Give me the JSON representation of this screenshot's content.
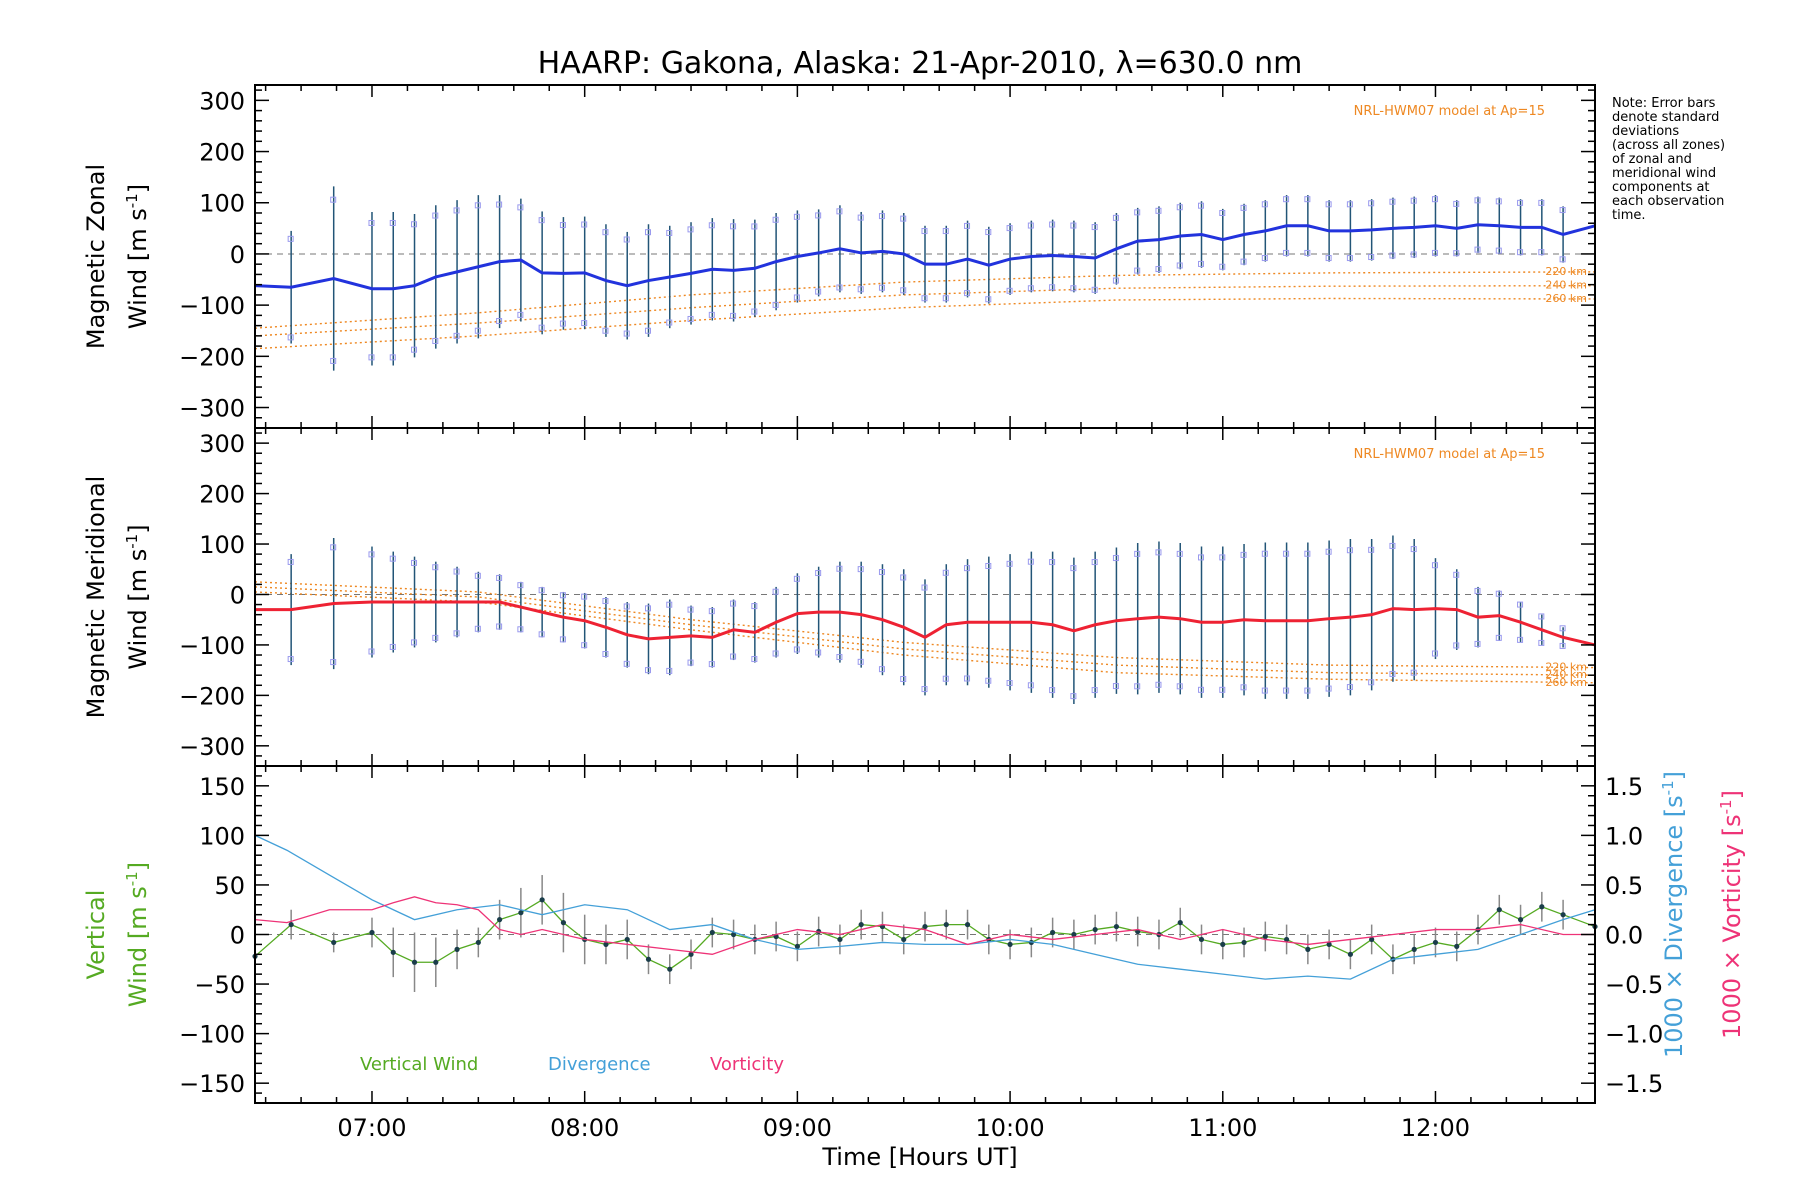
{
  "title": "HAARP: Gakona,  Alaska: 21-Apr-2010, λ=630.0 nm",
  "note_lines": [
    "Note: Error bars",
    "denote standard",
    "deviations",
    "(across all zones)",
    "of zonal and",
    "meridional wind",
    "components at",
    "each observation",
    "time."
  ],
  "colors": {
    "zonal": "#2233dd",
    "meridional": "#ee2233",
    "vertical": "#55aa22",
    "divergence": "#44a0d8",
    "vorticity": "#ee3377",
    "model": "#ee8822",
    "errorbar": "#225577",
    "scatter": "#9999ee"
  },
  "chart_data": [
    {
      "type": "line",
      "id": "zonal",
      "ylabel_line1": "Magnetic Zonal",
      "ylabel_line2": "Wind [m s",
      "ylabel_sup": "-1",
      "ylabel_close": "]",
      "xlim": [
        6.45,
        12.75
      ],
      "ylim": [
        -340,
        330
      ],
      "yticks": [
        300,
        200,
        100,
        0,
        -100,
        -200,
        -300
      ],
      "grid": false,
      "model_label": "NRL-HWM07 model at Ap=15",
      "model_curves": [
        {
          "name": "220 km",
          "x": [
            6.45,
            7.5,
            8.5,
            9.5,
            10.5,
            11.5,
            12.75
          ],
          "y": [
            -145,
            -115,
            -80,
            -55,
            -42,
            -37,
            -35
          ]
        },
        {
          "name": "240 km",
          "x": [
            6.45,
            7.5,
            8.5,
            9.5,
            10.5,
            11.5,
            12.75
          ],
          "y": [
            -160,
            -135,
            -105,
            -80,
            -67,
            -63,
            -62
          ]
        },
        {
          "name": "260 km",
          "x": [
            6.45,
            7.5,
            8.5,
            9.5,
            10.5,
            11.5,
            12.75
          ],
          "y": [
            -185,
            -160,
            -130,
            -105,
            -90,
            -87,
            -88
          ]
        }
      ],
      "series": [
        {
          "name": "zonal",
          "x": [
            6.45,
            6.62,
            6.82,
            7.0,
            7.1,
            7.2,
            7.3,
            7.4,
            7.5,
            7.6,
            7.7,
            7.8,
            7.9,
            8.0,
            8.1,
            8.2,
            8.3,
            8.4,
            8.5,
            8.6,
            8.7,
            8.8,
            8.9,
            9.0,
            9.1,
            9.2,
            9.3,
            9.4,
            9.5,
            9.6,
            9.7,
            9.8,
            9.9,
            10.0,
            10.1,
            10.2,
            10.3,
            10.4,
            10.5,
            10.6,
            10.7,
            10.8,
            10.9,
            11.0,
            11.1,
            11.2,
            11.3,
            11.4,
            11.5,
            11.6,
            11.7,
            11.8,
            11.9,
            12.0,
            12.1,
            12.2,
            12.3,
            12.4,
            12.5,
            12.6,
            12.75
          ],
          "y": [
            -62,
            -65,
            -48,
            -68,
            -68,
            -62,
            -45,
            -35,
            -25,
            -15,
            -12,
            -37,
            -38,
            -37,
            -52,
            -62,
            -52,
            -45,
            -38,
            -30,
            -32,
            -28,
            -15,
            -5,
            2,
            10,
            2,
            5,
            0,
            -20,
            -20,
            -10,
            -22,
            -10,
            -5,
            -3,
            -5,
            -8,
            10,
            25,
            28,
            35,
            38,
            28,
            38,
            45,
            55,
            55,
            45,
            45,
            47,
            50,
            52,
            55,
            50,
            57,
            55,
            52,
            52,
            38,
            55
          ],
          "err": [
            0,
            110,
            180,
            150,
            150,
            140,
            140,
            140,
            140,
            130,
            120,
            120,
            110,
            110,
            110,
            105,
            110,
            100,
            100,
            100,
            100,
            95,
            95,
            90,
            85,
            85,
            80,
            80,
            80,
            75,
            75,
            75,
            75,
            70,
            70,
            70,
            70,
            70,
            70,
            65,
            65,
            65,
            65,
            60,
            60,
            60,
            60,
            60,
            60,
            60,
            60,
            60,
            60,
            60,
            55,
            55,
            55,
            55,
            55,
            55,
            0
          ]
        }
      ]
    },
    {
      "type": "line",
      "id": "meridional",
      "ylabel_line1": "Magnetic Meridional",
      "ylabel_line2": "Wind [m s",
      "ylabel_sup": "-1",
      "ylabel_close": "]",
      "xlim": [
        6.45,
        12.75
      ],
      "ylim": [
        -340,
        330
      ],
      "yticks": [
        300,
        200,
        100,
        0,
        -100,
        -200,
        -300
      ],
      "grid": false,
      "model_label": "NRL-HWM07 model at Ap=15",
      "model_curves": [
        {
          "name": "220 km",
          "x": [
            6.45,
            7.5,
            8.5,
            9.5,
            10.5,
            11.5,
            12.75
          ],
          "y": [
            25,
            5,
            -50,
            -95,
            -125,
            -140,
            -145
          ]
        },
        {
          "name": "240 km",
          "x": [
            6.45,
            7.5,
            8.5,
            9.5,
            10.5,
            11.5,
            12.75
          ],
          "y": [
            15,
            -5,
            -60,
            -108,
            -140,
            -155,
            -160
          ]
        },
        {
          "name": "260 km",
          "x": [
            6.45,
            7.5,
            8.5,
            9.5,
            10.5,
            11.5,
            12.75
          ],
          "y": [
            5,
            -15,
            -70,
            -120,
            -155,
            -168,
            -175
          ]
        }
      ],
      "series": [
        {
          "name": "meridional",
          "x": [
            6.45,
            6.62,
            6.82,
            7.0,
            7.1,
            7.2,
            7.3,
            7.4,
            7.5,
            7.6,
            7.7,
            7.8,
            7.9,
            8.0,
            8.1,
            8.2,
            8.3,
            8.4,
            8.5,
            8.6,
            8.7,
            8.8,
            8.9,
            9.0,
            9.1,
            9.2,
            9.3,
            9.4,
            9.5,
            9.6,
            9.7,
            9.8,
            9.9,
            10.0,
            10.1,
            10.2,
            10.3,
            10.4,
            10.5,
            10.6,
            10.7,
            10.8,
            10.9,
            11.0,
            11.1,
            11.2,
            11.3,
            11.4,
            11.5,
            11.6,
            11.7,
            11.8,
            11.9,
            12.0,
            12.1,
            12.2,
            12.3,
            12.4,
            12.5,
            12.6,
            12.75
          ],
          "y": [
            -30,
            -30,
            -18,
            -15,
            -15,
            -15,
            -15,
            -15,
            -15,
            -15,
            -25,
            -35,
            -45,
            -52,
            -65,
            -80,
            -88,
            -85,
            -82,
            -85,
            -70,
            -75,
            -55,
            -38,
            -35,
            -35,
            -40,
            -50,
            -65,
            -85,
            -60,
            -55,
            -55,
            -55,
            -55,
            -60,
            -72,
            -60,
            -52,
            -48,
            -45,
            -48,
            -55,
            -55,
            -50,
            -52,
            -52,
            -52,
            -48,
            -45,
            -40,
            -28,
            -30,
            -28,
            -30,
            -45,
            -42,
            -55,
            -70,
            -85,
            -100
          ],
          "err": [
            0,
            110,
            130,
            110,
            100,
            90,
            80,
            70,
            60,
            55,
            50,
            50,
            50,
            55,
            60,
            65,
            70,
            75,
            60,
            60,
            60,
            60,
            70,
            80,
            90,
            100,
            105,
            110,
            115,
            115,
            120,
            125,
            130,
            135,
            140,
            145,
            145,
            145,
            145,
            150,
            150,
            150,
            150,
            150,
            150,
            155,
            155,
            155,
            155,
            155,
            150,
            145,
            140,
            100,
            80,
            60,
            50,
            40,
            30,
            20,
            0
          ]
        }
      ]
    },
    {
      "type": "line",
      "id": "vertical",
      "ylabel_line1": "Vertical",
      "ylabel_line2": "Wind [m s",
      "ylabel_sup": "-1",
      "ylabel_close": "]",
      "xlim": [
        6.45,
        12.75
      ],
      "ylim": [
        -170,
        170
      ],
      "yticks": [
        150,
        100,
        50,
        0,
        -50,
        -100,
        -150
      ],
      "y2lim": [
        -1.7,
        1.7
      ],
      "y2ticks": [
        1.5,
        1.0,
        0.5,
        0.0,
        -0.5,
        -1.0,
        -1.5
      ],
      "y2ticklabels": [
        "1.5",
        "1.0",
        "0.5",
        "0.0",
        "−0.5",
        "−1.0",
        "−1.5"
      ],
      "y2label_div": "1000 × Divergence [s",
      "y2label_vort": "1000 × Vorticity [s",
      "y2label_sup": "-1",
      "y2label_close": "]",
      "grid": false,
      "legend": [
        "Vertical Wind",
        "Divergence",
        "Vorticity"
      ],
      "legend_position": "bottom-left",
      "series": [
        {
          "name": "Vertical Wind",
          "x": [
            6.45,
            6.62,
            6.82,
            7.0,
            7.1,
            7.2,
            7.3,
            7.4,
            7.5,
            7.6,
            7.7,
            7.8,
            7.9,
            8.0,
            8.1,
            8.2,
            8.3,
            8.4,
            8.5,
            8.6,
            8.7,
            8.8,
            8.9,
            9.0,
            9.1,
            9.2,
            9.3,
            9.4,
            9.5,
            9.6,
            9.7,
            9.8,
            9.9,
            10.0,
            10.1,
            10.2,
            10.3,
            10.4,
            10.5,
            10.6,
            10.7,
            10.8,
            10.9,
            11.0,
            11.1,
            11.2,
            11.3,
            11.4,
            11.5,
            11.6,
            11.7,
            11.8,
            11.9,
            12.0,
            12.1,
            12.2,
            12.3,
            12.4,
            12.5,
            12.6,
            12.75
          ],
          "y": [
            -22,
            10,
            -8,
            2,
            -18,
            -28,
            -28,
            -15,
            -8,
            15,
            22,
            35,
            12,
            -5,
            -10,
            -5,
            -25,
            -35,
            -20,
            2,
            0,
            -5,
            -2,
            -12,
            3,
            -5,
            10,
            8,
            -5,
            8,
            10,
            10,
            -5,
            -10,
            -8,
            2,
            0,
            5,
            8,
            3,
            0,
            12,
            -5,
            -10,
            -8,
            -2,
            -5,
            -15,
            -10,
            -20,
            -5,
            -25,
            -15,
            -8,
            -12,
            5,
            25,
            15,
            28,
            20,
            8
          ],
          "err": [
            0,
            15,
            10,
            15,
            25,
            30,
            25,
            20,
            15,
            20,
            25,
            25,
            30,
            25,
            20,
            20,
            15,
            15,
            15,
            15,
            15,
            15,
            15,
            15,
            15,
            15,
            15,
            15,
            15,
            15,
            15,
            15,
            15,
            15,
            15,
            15,
            15,
            15,
            15,
            15,
            15,
            15,
            15,
            15,
            15,
            15,
            15,
            15,
            15,
            15,
            15,
            15,
            15,
            15,
            15,
            15,
            15,
            15,
            15,
            15,
            0
          ]
        },
        {
          "name": "Divergence",
          "axis": "right",
          "x": [
            6.45,
            6.6,
            6.8,
            7.0,
            7.2,
            7.4,
            7.6,
            7.7,
            7.8,
            8.0,
            8.2,
            8.4,
            8.6,
            8.8,
            9.0,
            9.2,
            9.4,
            9.6,
            9.8,
            10.0,
            10.2,
            10.4,
            10.6,
            10.8,
            11.0,
            11.2,
            11.4,
            11.6,
            11.8,
            12.0,
            12.2,
            12.4,
            12.6,
            12.75
          ],
          "y": [
            1.0,
            0.85,
            0.6,
            0.35,
            0.15,
            0.25,
            0.3,
            0.25,
            0.2,
            0.3,
            0.25,
            0.05,
            0.1,
            -0.05,
            -0.15,
            -0.12,
            -0.08,
            -0.1,
            -0.1,
            -0.05,
            -0.1,
            -0.2,
            -0.3,
            -0.35,
            -0.4,
            -0.45,
            -0.42,
            -0.45,
            -0.25,
            -0.2,
            -0.15,
            0.0,
            0.15,
            0.25
          ]
        },
        {
          "name": "Vorticity",
          "axis": "right",
          "x": [
            6.45,
            6.6,
            6.8,
            7.0,
            7.1,
            7.2,
            7.3,
            7.4,
            7.5,
            7.6,
            7.7,
            7.8,
            8.0,
            8.2,
            8.4,
            8.6,
            8.8,
            9.0,
            9.2,
            9.4,
            9.6,
            9.8,
            10.0,
            10.2,
            10.4,
            10.6,
            10.8,
            11.0,
            11.2,
            11.4,
            11.6,
            11.8,
            12.0,
            12.2,
            12.4,
            12.6,
            12.75
          ],
          "y": [
            0.15,
            0.12,
            0.25,
            0.25,
            0.32,
            0.38,
            0.32,
            0.3,
            0.25,
            0.05,
            0.0,
            0.05,
            -0.05,
            -0.1,
            -0.15,
            -0.2,
            -0.05,
            0.05,
            0.0,
            0.1,
            0.05,
            -0.1,
            0.0,
            -0.05,
            0.0,
            0.05,
            -0.05,
            0.05,
            -0.05,
            -0.1,
            -0.05,
            0.0,
            0.05,
            0.05,
            0.1,
            0.0,
            0.0
          ]
        }
      ]
    }
  ],
  "xaxis": {
    "ticks": [
      7,
      8,
      9,
      10,
      11,
      12
    ],
    "ticklabels": [
      "07:00",
      "08:00",
      "09:00",
      "10:00",
      "11:00",
      "12:00"
    ],
    "label": "Time [Hours UT]"
  }
}
